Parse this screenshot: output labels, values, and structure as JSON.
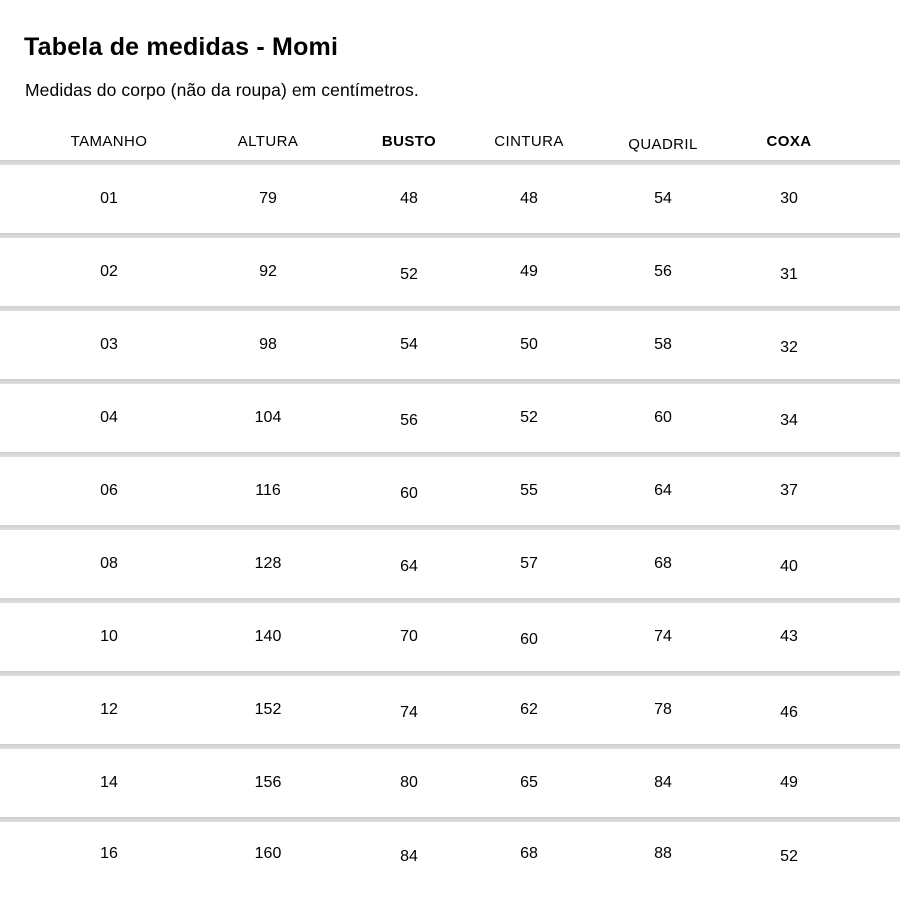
{
  "page": {
    "title": "Tabela de medidas - Momi",
    "subtitle": "Medidas do corpo (não da roupa) em centímetros."
  },
  "table": {
    "columns": [
      {
        "id": "tamanho",
        "label": "TAMANHO",
        "bold": false
      },
      {
        "id": "altura",
        "label": "ALTURA",
        "bold": false
      },
      {
        "id": "busto",
        "label": "BUSTO",
        "bold": true
      },
      {
        "id": "cintura",
        "label": "CINTURA",
        "bold": false
      },
      {
        "id": "quadril",
        "label": "QUADRIL",
        "bold": false
      },
      {
        "id": "coxa",
        "label": "COXA",
        "bold": true
      }
    ],
    "rows": [
      {
        "tamanho": "01",
        "altura": "79",
        "busto": "48",
        "cintura": "48",
        "quadril": "54",
        "coxa": "30"
      },
      {
        "tamanho": "02",
        "altura": "92",
        "busto": "52",
        "cintura": "49",
        "quadril": "56",
        "coxa": "31"
      },
      {
        "tamanho": "03",
        "altura": "98",
        "busto": "54",
        "cintura": "50",
        "quadril": "58",
        "coxa": "32"
      },
      {
        "tamanho": "04",
        "altura": "104",
        "busto": "56",
        "cintura": "52",
        "quadril": "60",
        "coxa": "34"
      },
      {
        "tamanho": "06",
        "altura": "116",
        "busto": "60",
        "cintura": "55",
        "quadril": "64",
        "coxa": "37"
      },
      {
        "tamanho": "08",
        "altura": "128",
        "busto": "64",
        "cintura": "57",
        "quadril": "68",
        "coxa": "40"
      },
      {
        "tamanho": "10",
        "altura": "140",
        "busto": "70",
        "cintura": "60",
        "quadril": "74",
        "coxa": "43"
      },
      {
        "tamanho": "12",
        "altura": "152",
        "busto": "74",
        "cintura": "62",
        "quadril": "78",
        "coxa": "46"
      },
      {
        "tamanho": "14",
        "altura": "156",
        "busto": "80",
        "cintura": "65",
        "quadril": "84",
        "coxa": "49"
      },
      {
        "tamanho": "16",
        "altura": "160",
        "busto": "84",
        "cintura": "68",
        "quadril": "88",
        "coxa": "52"
      }
    ]
  },
  "colors": {
    "text": "#000000",
    "divider": "#d9d9d9",
    "background": "#ffffff"
  }
}
